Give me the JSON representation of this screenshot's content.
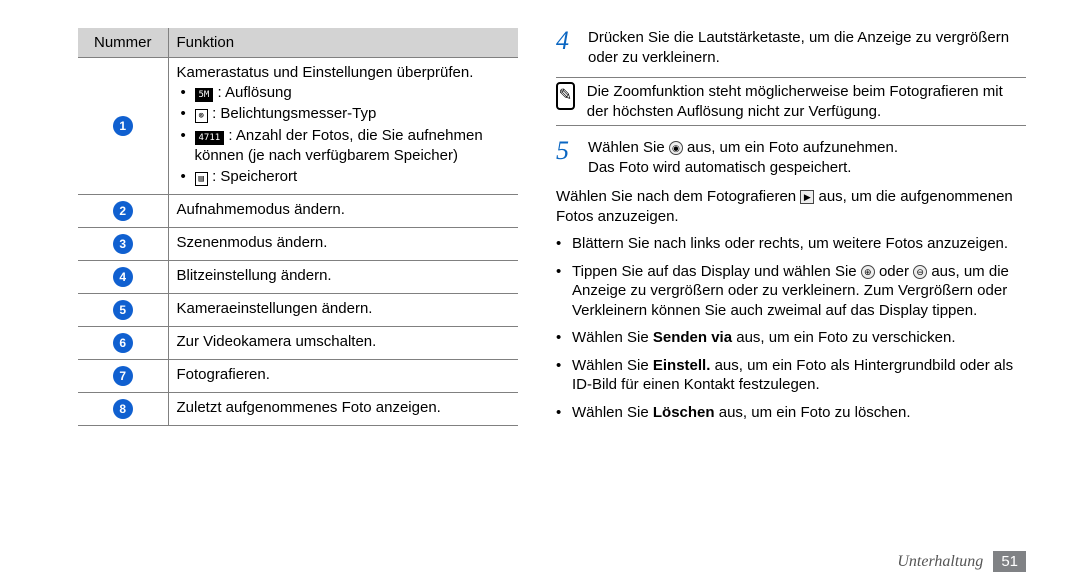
{
  "table": {
    "head_left": "Nummer",
    "head_right": "Funktion",
    "row1_intro": "Kamerastatus und Einstellungen überprüfen.",
    "row1_b1": ": Auflösung",
    "row1_b2": ": Belichtungsmesser-Typ",
    "row1_b3": ": Anzahl der Fotos, die Sie aufnehmen können (je nach verfügbarem Speicher)",
    "row1_b4": ": Speicherort",
    "row2": "Aufnahmemodus ändern.",
    "row3": "Szenenmodus ändern.",
    "row4": "Blitzeinstellung ändern.",
    "row5": "Kameraeinstellungen ändern.",
    "row6": "Zur Videokamera umschalten.",
    "row7": "Fotografieren.",
    "row8": "Zuletzt aufgenommenes Foto anzeigen."
  },
  "right": {
    "step4": "Drücken Sie die Lautstärketaste, um die Anzeige zu vergrößern oder zu verkleinern.",
    "note": "Die Zoomfunktion steht möglicherweise beim Fotografieren mit der höchsten Auflösung nicht zur Verfügung.",
    "step5a": "Wählen Sie ",
    "step5b": " aus, um ein Foto aufzunehmen.",
    "step5c": "Das Foto wird automatisch gespeichert.",
    "plain1a": "Wählen Sie nach dem Fotografieren ",
    "plain1b": " aus, um die aufgenommenen Fotos anzuzeigen.",
    "li1": "Blättern Sie nach links oder rechts, um weitere Fotos anzuzeigen.",
    "li2a": "Tippen Sie auf das Display und wählen Sie ",
    "li2b": " oder ",
    "li2c": " aus, um die Anzeige zu vergrößern oder zu verkleinern. Zum Vergrößern oder Verkleinern können Sie auch zweimal auf das Display tippen.",
    "li3a": "Wählen Sie ",
    "li3b": "Senden via",
    "li3c": " aus, um ein Foto zu verschicken.",
    "li4a": "Wählen Sie ",
    "li4b": "Einstell.",
    "li4c": " aus, um ein Foto als Hintergrundbild oder als ID-Bild für einen Kontakt festzulegen.",
    "li5a": "Wählen Sie ",
    "li5b": "Löschen",
    "li5c": " aus, um ein Foto zu löschen."
  },
  "icons": {
    "resolution": "5M",
    "metering": "⊚",
    "counter": "4711",
    "storage": "▤",
    "shutter": "◉",
    "play": "▶",
    "zoom_in": "⊕",
    "zoom_out": "⊖",
    "note": "✎"
  },
  "circle_labels": [
    "1",
    "2",
    "3",
    "4",
    "5",
    "6",
    "7",
    "8"
  ],
  "step_nums": {
    "four": "4",
    "five": "5"
  },
  "footer": {
    "section": "Unterhaltung",
    "page": "51"
  }
}
